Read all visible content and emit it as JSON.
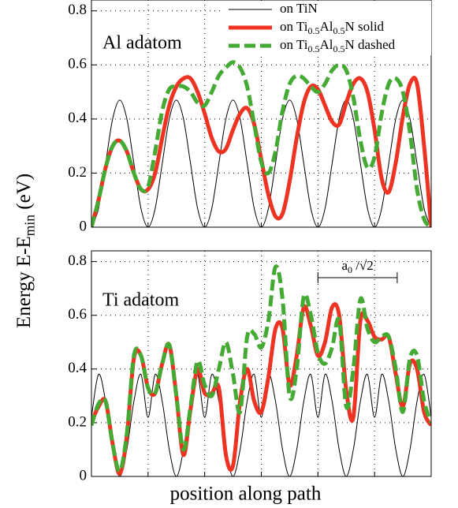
{
  "chart_data": [
    {
      "type": "line",
      "label": "Al adatom",
      "ylabel": {
        "text": "Energy E-E",
        "sub": "min",
        "tail": " (eV)"
      },
      "x": [
        0,
        0.125,
        0.25,
        0.375,
        0.5,
        0.625,
        0.75,
        0.875,
        1,
        1.125,
        1.25,
        1.375,
        1.5,
        1.625,
        1.75,
        1.875,
        2,
        2.125,
        2.25,
        2.375,
        2.5,
        2.625,
        2.75,
        2.875,
        3,
        3.125,
        3.25,
        3.375,
        3.5,
        3.625,
        3.75,
        3.875,
        4,
        4.125,
        4.25,
        4.375,
        4.5,
        4.625,
        4.75,
        4.875,
        5,
        5.125,
        5.25,
        5.375,
        5.5,
        5.625,
        5.75,
        5.875,
        6
      ],
      "xlim": [
        0,
        6
      ],
      "xgrid": [
        1,
        2,
        3,
        4,
        5
      ],
      "ylim": [
        0,
        0.84
      ],
      "yticks": [
        0,
        0.2,
        0.4,
        0.6,
        0.8
      ],
      "grid": true,
      "legend": "upper right",
      "series": [
        {
          "name": "on TiN",
          "color": "#000000",
          "width": 1,
          "dashed": false,
          "values": [
            0,
            0.069,
            0.235,
            0.401,
            0.47,
            0.401,
            0.235,
            0.069,
            0,
            0.069,
            0.235,
            0.401,
            0.47,
            0.401,
            0.235,
            0.069,
            0,
            0.069,
            0.235,
            0.401,
            0.47,
            0.401,
            0.235,
            0.069,
            0,
            0.069,
            0.235,
            0.401,
            0.47,
            0.401,
            0.235,
            0.069,
            0,
            0.069,
            0.235,
            0.401,
            0.47,
            0.401,
            0.235,
            0.069,
            0,
            0.069,
            0.235,
            0.401,
            0.47,
            0.401,
            0.235,
            0.069,
            0
          ]
        },
        {
          "name": "on Ti0.5Al0.5N solid",
          "color": "#ee3322",
          "width": 5,
          "dashed": false,
          "values": [
            0,
            0.1,
            0.22,
            0.3,
            0.32,
            0.28,
            0.2,
            0.14,
            0.14,
            0.2,
            0.33,
            0.45,
            0.52,
            0.55,
            0.55,
            0.5,
            0.42,
            0.33,
            0.28,
            0.29,
            0.36,
            0.42,
            0.44,
            0.38,
            0.25,
            0.12,
            0.04,
            0.05,
            0.17,
            0.33,
            0.46,
            0.52,
            0.51,
            0.45,
            0.39,
            0.38,
            0.46,
            0.53,
            0.55,
            0.5,
            0.36,
            0.18,
            0.13,
            0.24,
            0.41,
            0.53,
            0.53,
            0.3,
            0
          ]
        },
        {
          "name": "on Ti0.5Al0.5N dashed",
          "color": "#44aa33",
          "width": 5,
          "dashed": true,
          "values": [
            0,
            0.1,
            0.22,
            0.3,
            0.32,
            0.28,
            0.2,
            0.14,
            0.15,
            0.28,
            0.43,
            0.51,
            0.52,
            0.52,
            0.5,
            0.46,
            0.45,
            0.5,
            0.56,
            0.59,
            0.61,
            0.59,
            0.52,
            0.38,
            0.24,
            0.2,
            0.28,
            0.43,
            0.53,
            0.56,
            0.55,
            0.52,
            0.5,
            0.53,
            0.58,
            0.6,
            0.58,
            0.48,
            0.32,
            0.22,
            0.26,
            0.42,
            0.53,
            0.55,
            0.5,
            0.35,
            0.14,
            0.03,
            0
          ]
        }
      ]
    },
    {
      "type": "line",
      "label": "Ti adatom",
      "xlabel": "position along path",
      "annotation": {
        "text": "a",
        "sub": "0",
        "tail": " /√2",
        "x": [
          4.0,
          5.4
        ],
        "y": 0.74
      },
      "x": [
        0,
        0.125,
        0.25,
        0.375,
        0.5,
        0.625,
        0.75,
        0.875,
        1,
        1.125,
        1.25,
        1.375,
        1.5,
        1.625,
        1.75,
        1.875,
        2,
        2.125,
        2.25,
        2.375,
        2.5,
        2.625,
        2.75,
        2.875,
        3,
        3.125,
        3.25,
        3.375,
        3.5,
        3.625,
        3.75,
        3.875,
        4,
        4.125,
        4.25,
        4.375,
        4.5,
        4.625,
        4.75,
        4.875,
        5,
        5.125,
        5.25,
        5.375,
        5.5,
        5.625,
        5.75,
        5.875,
        6
      ],
      "xlim": [
        0,
        6
      ],
      "xgrid": [
        1,
        2,
        3,
        4,
        5
      ],
      "ylim": [
        0,
        0.84
      ],
      "yticks": [
        0,
        0.2,
        0.4,
        0.6,
        0.8
      ],
      "grid": true,
      "series": [
        {
          "color": "#000000",
          "width": 1,
          "dashed": false,
          "values": [
            0.22,
            0.38,
            0.28,
            0.1,
            0,
            0.1,
            0.28,
            0.38,
            0.22,
            0.38,
            0.28,
            0.1,
            0,
            0.1,
            0.28,
            0.38,
            0.22,
            0.38,
            0.28,
            0.1,
            0,
            0.1,
            0.28,
            0.38,
            0.22,
            0.38,
            0.28,
            0.1,
            0,
            0.1,
            0.28,
            0.38,
            0.22,
            0.38,
            0.28,
            0.1,
            0,
            0.1,
            0.28,
            0.38,
            0.22,
            0.38,
            0.28,
            0.1,
            0,
            0.1,
            0.28,
            0.38,
            0.22
          ]
        },
        {
          "color": "#ee3322",
          "width": 5,
          "dashed": false,
          "values": [
            0.2,
            0.26,
            0.28,
            0.12,
            0.01,
            0.15,
            0.44,
            0.45,
            0.33,
            0.31,
            0.42,
            0.49,
            0.3,
            0.08,
            0.25,
            0.4,
            0.31,
            0.31,
            0.33,
            0.08,
            0.04,
            0.28,
            0.4,
            0.28,
            0.24,
            0.37,
            0.55,
            0.55,
            0.34,
            0.45,
            0.63,
            0.56,
            0.45,
            0.5,
            0.63,
            0.6,
            0.32,
            0.22,
            0.58,
            0.58,
            0.52,
            0.51,
            0.52,
            0.38,
            0.26,
            0.42,
            0.4,
            0.24,
            0.19
          ]
        },
        {
          "color": "#44aa33",
          "width": 5,
          "dashed": true,
          "values": [
            0.19,
            0.27,
            0.28,
            0.12,
            0.02,
            0.16,
            0.45,
            0.45,
            0.33,
            0.31,
            0.42,
            0.49,
            0.3,
            0.1,
            0.26,
            0.43,
            0.34,
            0.3,
            0.4,
            0.5,
            0.38,
            0.24,
            0.52,
            0.53,
            0.48,
            0.58,
            0.78,
            0.66,
            0.3,
            0.4,
            0.67,
            0.6,
            0.46,
            0.42,
            0.48,
            0.58,
            0.26,
            0.4,
            0.66,
            0.55,
            0.5,
            0.52,
            0.52,
            0.4,
            0.24,
            0.44,
            0.45,
            0.28,
            0.2
          ]
        }
      ]
    }
  ]
}
